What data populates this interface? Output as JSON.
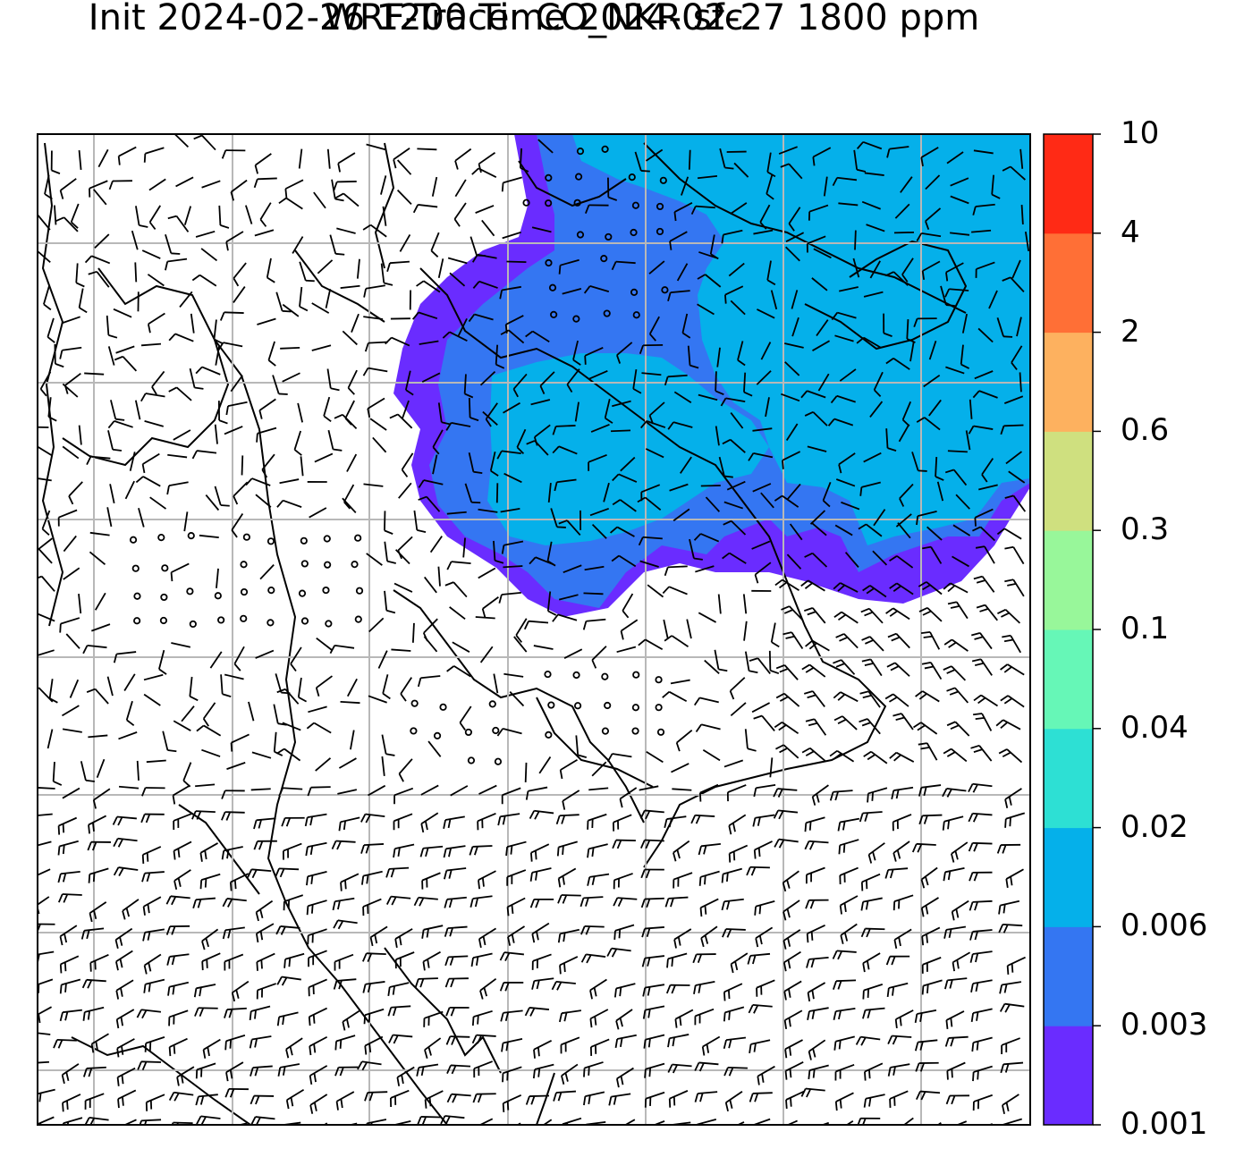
{
  "title": {
    "line1": "WRF-Tracer CO_NKR sfc",
    "line2": "Init 2024-02-26 1200 Time 2024-02-27 1800 ppm"
  },
  "colorbar": {
    "levels": [
      "0.001",
      "0.003",
      "0.006",
      "0.02",
      "0.04",
      "0.1",
      "0.3",
      "0.6",
      "2",
      "4",
      "10"
    ],
    "colors": [
      "#6a2cff",
      "#3476f2",
      "#05b0ea",
      "#2de0d4",
      "#66f7b7",
      "#98f79a",
      "#cfe07f",
      "#fdb15f",
      "#ff6f36",
      "#ff2a15"
    ]
  },
  "map": {
    "background": "#ffffff",
    "gridlines": true,
    "plume_colors": [
      "#6a2cff",
      "#3476f2",
      "#05b0ea"
    ]
  }
}
